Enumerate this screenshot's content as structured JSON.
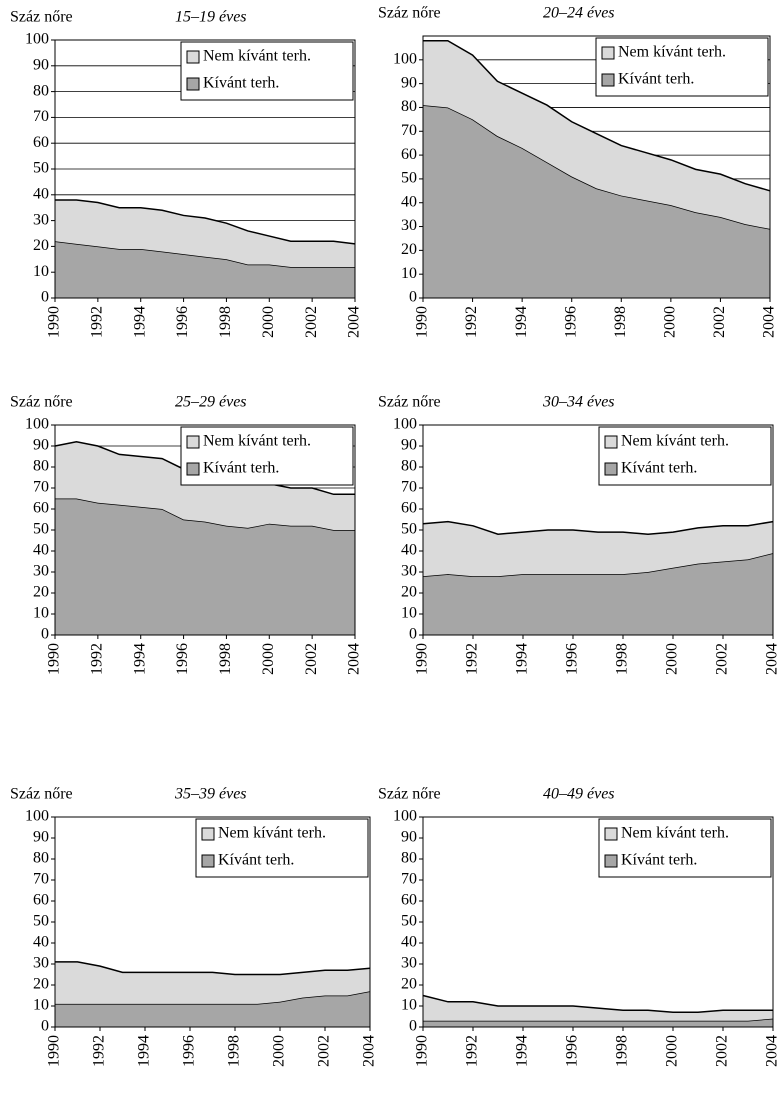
{
  "chart_data": [
    {
      "type": "area",
      "stacked": true,
      "title": "15–19 éves",
      "ylabel": "Száz nőre",
      "x": [
        1990,
        1991,
        1992,
        1993,
        1994,
        1995,
        1996,
        1997,
        1998,
        1999,
        2000,
        2001,
        2002,
        2003,
        2004
      ],
      "xlim": [
        1990,
        2004
      ],
      "xticks": [
        1990,
        1992,
        1994,
        1996,
        1998,
        2000,
        2002,
        2004
      ],
      "ylim": [
        0,
        100
      ],
      "yticks": [
        0,
        10,
        20,
        30,
        40,
        50,
        60,
        70,
        80,
        90,
        100
      ],
      "grid": true,
      "series": [
        {
          "name": "Kívánt terh.",
          "color": "#a6a6a6",
          "values": [
            22,
            21,
            20,
            19,
            19,
            18,
            17,
            16,
            15,
            13,
            13,
            12,
            12,
            12,
            12
          ]
        },
        {
          "name": "Nem kívánt terh.",
          "color": "#dadada",
          "values": [
            16,
            17,
            17,
            16,
            16,
            16,
            15,
            15,
            14,
            13,
            11,
            10,
            10,
            10,
            9
          ]
        }
      ]
    },
    {
      "type": "area",
      "stacked": true,
      "title": "20–24 éves",
      "ylabel": "Száz nőre",
      "x": [
        1990,
        1991,
        1992,
        1993,
        1994,
        1995,
        1996,
        1997,
        1998,
        1999,
        2000,
        2001,
        2002,
        2003,
        2004
      ],
      "xlim": [
        1990,
        2004
      ],
      "xticks": [
        1990,
        1992,
        1994,
        1996,
        1998,
        2000,
        2002,
        2004
      ],
      "ylim": [
        0,
        110
      ],
      "yticks": [
        0,
        10,
        20,
        30,
        40,
        50,
        60,
        70,
        80,
        90,
        100
      ],
      "grid": true,
      "series": [
        {
          "name": "Kívánt terh.",
          "color": "#a6a6a6",
          "values": [
            81,
            80,
            75,
            68,
            63,
            57,
            51,
            46,
            43,
            41,
            39,
            36,
            34,
            31,
            29
          ]
        },
        {
          "name": "Nem kívánt terh.",
          "color": "#dadada",
          "values": [
            27,
            28,
            27,
            23,
            23,
            24,
            23,
            23,
            21,
            20,
            19,
            18,
            18,
            17,
            16
          ]
        }
      ]
    },
    {
      "type": "area",
      "stacked": true,
      "title": "25–29 éves",
      "ylabel": "Száz nőre",
      "x": [
        1990,
        1991,
        1992,
        1993,
        1994,
        1995,
        1996,
        1997,
        1998,
        1999,
        2000,
        2001,
        2002,
        2003,
        2004
      ],
      "xlim": [
        1990,
        2004
      ],
      "xticks": [
        1990,
        1992,
        1994,
        1996,
        1998,
        2000,
        2002,
        2004
      ],
      "ylim": [
        0,
        100
      ],
      "yticks": [
        0,
        10,
        20,
        30,
        40,
        50,
        60,
        70,
        80,
        90,
        100
      ],
      "grid": true,
      "series": [
        {
          "name": "Kívánt terh.",
          "color": "#a6a6a6",
          "values": [
            65,
            65,
            63,
            62,
            61,
            60,
            55,
            54,
            52,
            51,
            53,
            52,
            52,
            50,
            50
          ]
        },
        {
          "name": "Nem kívánt terh.",
          "color": "#dadada",
          "values": [
            25,
            27,
            27,
            24,
            24,
            24,
            24,
            23,
            22,
            21,
            19,
            18,
            18,
            17,
            17
          ]
        }
      ]
    },
    {
      "type": "area",
      "stacked": true,
      "title": "30–34 éves",
      "ylabel": "Száz nőre",
      "x": [
        1990,
        1991,
        1992,
        1993,
        1994,
        1995,
        1996,
        1997,
        1998,
        1999,
        2000,
        2001,
        2002,
        2003,
        2004
      ],
      "xlim": [
        1990,
        2004
      ],
      "xticks": [
        1990,
        1992,
        1994,
        1996,
        1998,
        2000,
        2002,
        2004
      ],
      "ylim": [
        0,
        100
      ],
      "yticks": [
        0,
        10,
        20,
        30,
        40,
        50,
        60,
        70,
        80,
        90,
        100
      ],
      "grid": false,
      "series": [
        {
          "name": "Kívánt terh.",
          "color": "#a6a6a6",
          "values": [
            28,
            29,
            28,
            28,
            29,
            29,
            29,
            29,
            29,
            30,
            32,
            34,
            35,
            36,
            39
          ]
        },
        {
          "name": "Nem kívánt terh.",
          "color": "#dadada",
          "values": [
            25,
            25,
            24,
            20,
            20,
            21,
            21,
            20,
            20,
            18,
            17,
            17,
            17,
            16,
            15
          ]
        }
      ]
    },
    {
      "type": "area",
      "stacked": true,
      "title": "35–39 éves",
      "ylabel": "Száz nőre",
      "x": [
        1990,
        1991,
        1992,
        1993,
        1994,
        1995,
        1996,
        1997,
        1998,
        1999,
        2000,
        2001,
        2002,
        2003,
        2004
      ],
      "xlim": [
        1990,
        2004
      ],
      "xticks": [
        1990,
        1992,
        1994,
        1996,
        1998,
        2000,
        2002,
        2004
      ],
      "ylim": [
        0,
        100
      ],
      "yticks": [
        0,
        10,
        20,
        30,
        40,
        50,
        60,
        70,
        80,
        90,
        100
      ],
      "grid": false,
      "series": [
        {
          "name": "Kívánt terh.",
          "color": "#a6a6a6",
          "values": [
            11,
            11,
            11,
            11,
            11,
            11,
            11,
            11,
            11,
            11,
            12,
            14,
            15,
            15,
            17
          ]
        },
        {
          "name": "Nem kívánt terh.",
          "color": "#dadada",
          "values": [
            20,
            20,
            18,
            15,
            15,
            15,
            15,
            15,
            14,
            14,
            13,
            12,
            12,
            12,
            11
          ]
        }
      ]
    },
    {
      "type": "area",
      "stacked": true,
      "title": "40–49 éves",
      "ylabel": "Száz nőre",
      "x": [
        1990,
        1991,
        1992,
        1993,
        1994,
        1995,
        1996,
        1997,
        1998,
        1999,
        2000,
        2001,
        2002,
        2003,
        2004
      ],
      "xlim": [
        1990,
        2004
      ],
      "xticks": [
        1990,
        1992,
        1994,
        1996,
        1998,
        2000,
        2002,
        2004
      ],
      "ylim": [
        0,
        100
      ],
      "yticks": [
        0,
        10,
        20,
        30,
        40,
        50,
        60,
        70,
        80,
        90,
        100
      ],
      "grid": false,
      "series": [
        {
          "name": "Kívánt terh.",
          "color": "#a6a6a6",
          "values": [
            3,
            3,
            3,
            3,
            3,
            3,
            3,
            3,
            3,
            3,
            3,
            3,
            3,
            3,
            4
          ]
        },
        {
          "name": "Nem kívánt terh.",
          "color": "#dadada",
          "values": [
            12,
            9,
            9,
            7,
            7,
            7,
            7,
            6,
            5,
            5,
            4,
            4,
            5,
            5,
            4
          ]
        }
      ]
    }
  ]
}
